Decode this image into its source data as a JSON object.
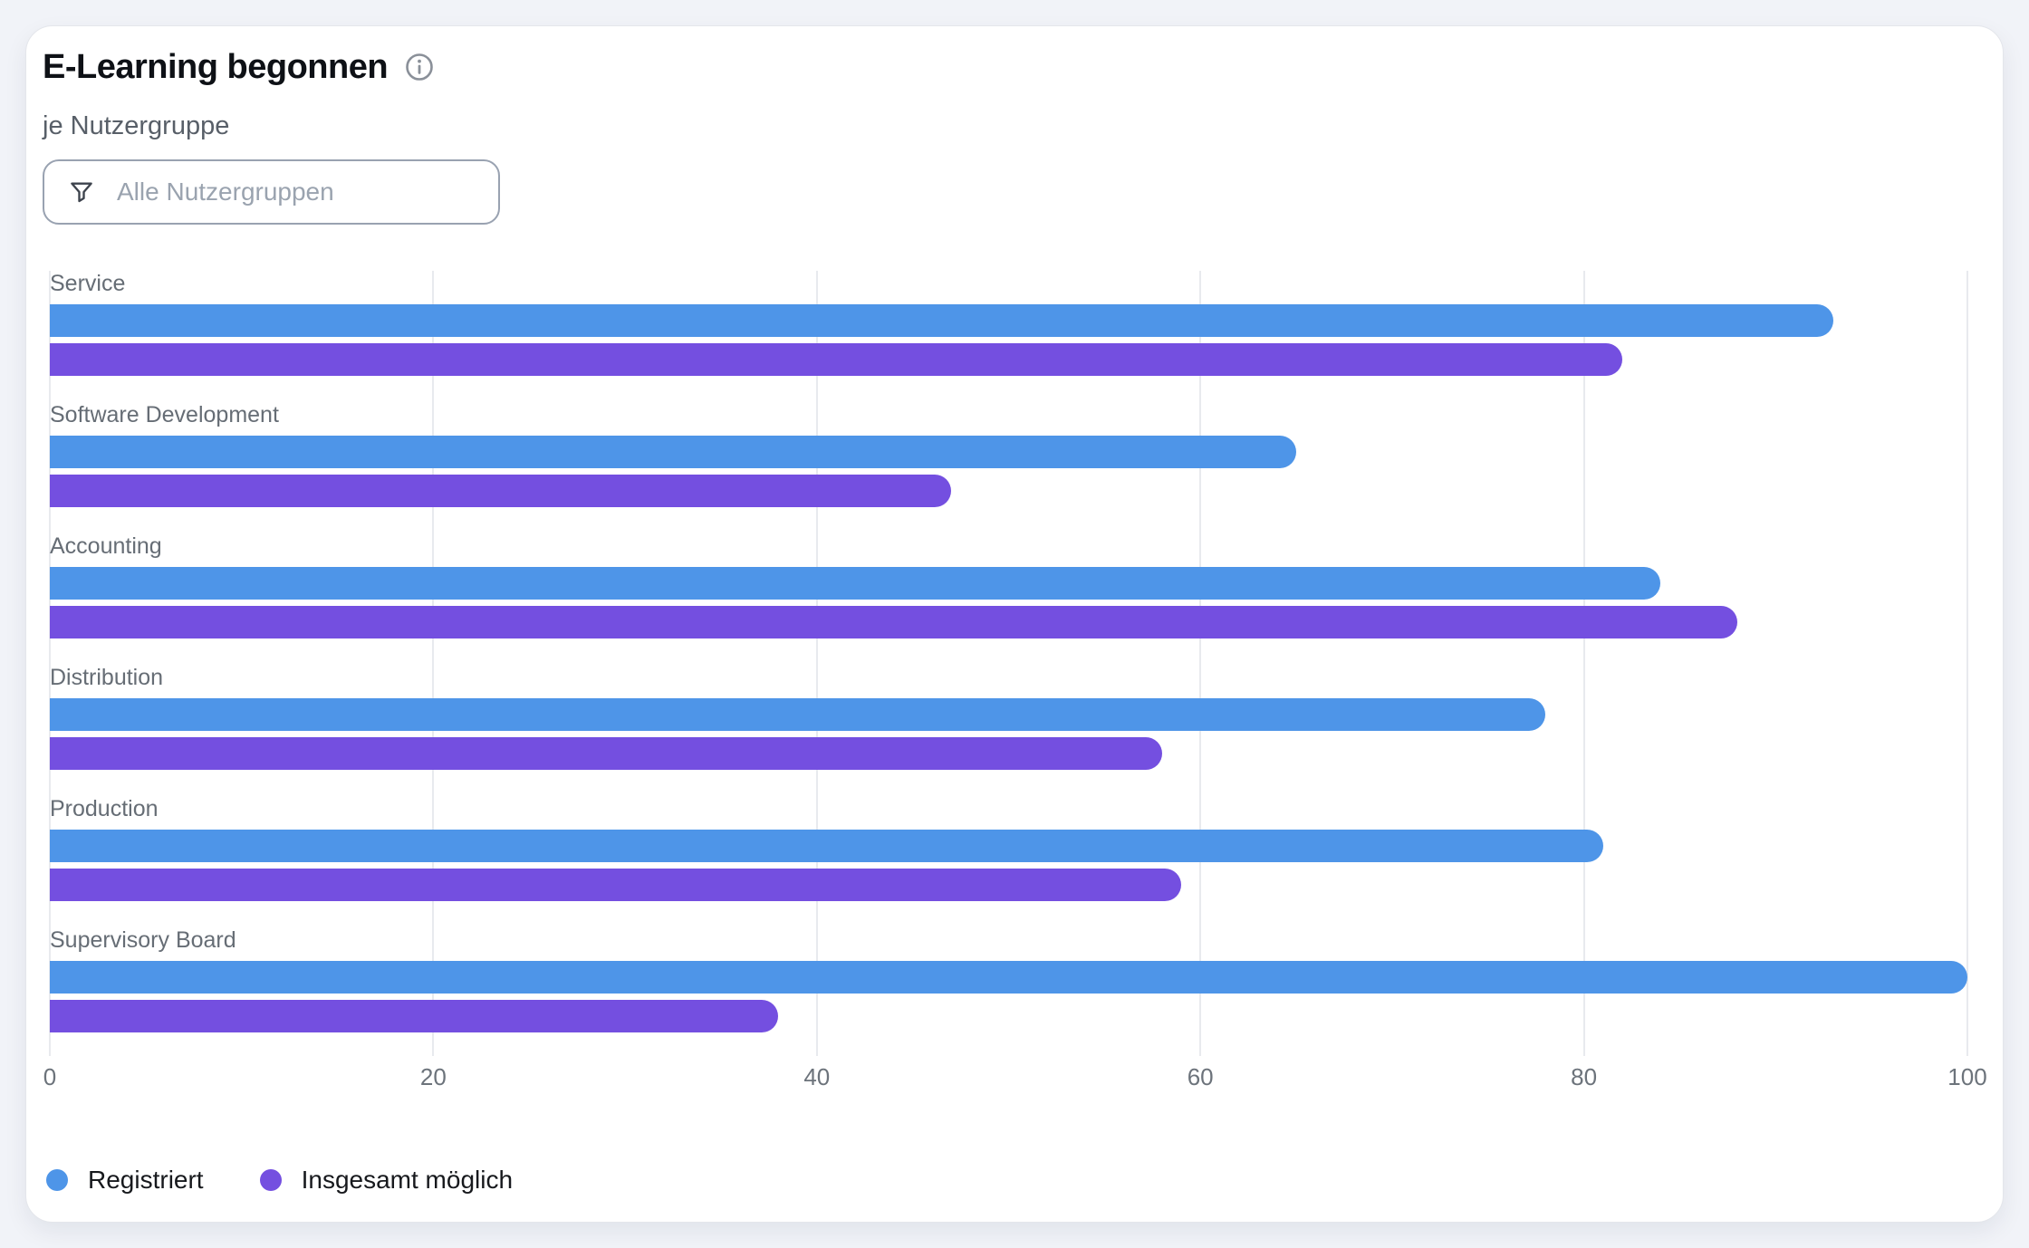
{
  "card": {
    "title": "E-Learning begonnen",
    "subtitle": "je Nutzergruppe",
    "filter": {
      "placeholder": "Alle Nutzergruppen",
      "icon": "funnel-icon"
    },
    "info_icon": "info-circle-icon"
  },
  "chart_data": {
    "type": "bar",
    "orientation": "horizontal",
    "title": "E-Learning begonnen",
    "subtitle": "je Nutzergruppe",
    "categories": [
      "Service",
      "Software Development",
      "Accounting",
      "Distribution",
      "Production",
      "Supervisory Board"
    ],
    "series": [
      {
        "name": "Registriert",
        "color": "#4E95E8",
        "values": [
          93,
          65,
          84,
          78,
          81,
          100
        ]
      },
      {
        "name": "Insgesamt möglich",
        "color": "#744FE0",
        "values": [
          82,
          47,
          88,
          58,
          59,
          38
        ]
      }
    ],
    "xlabel": "",
    "ylabel": "",
    "xlim": [
      0,
      100
    ],
    "x_ticks": [
      0,
      20,
      40,
      60,
      80,
      100
    ],
    "grid": true,
    "legend_position": "bottom"
  },
  "colors": {
    "registriert": "#4E95E8",
    "insgesamt_moeglich": "#744FE0",
    "gridline": "#E8EAEE",
    "page_background": "#F1F3F8",
    "card_background": "#FFFFFF",
    "title_text": "#0E1116",
    "muted_text": "#666D75"
  }
}
